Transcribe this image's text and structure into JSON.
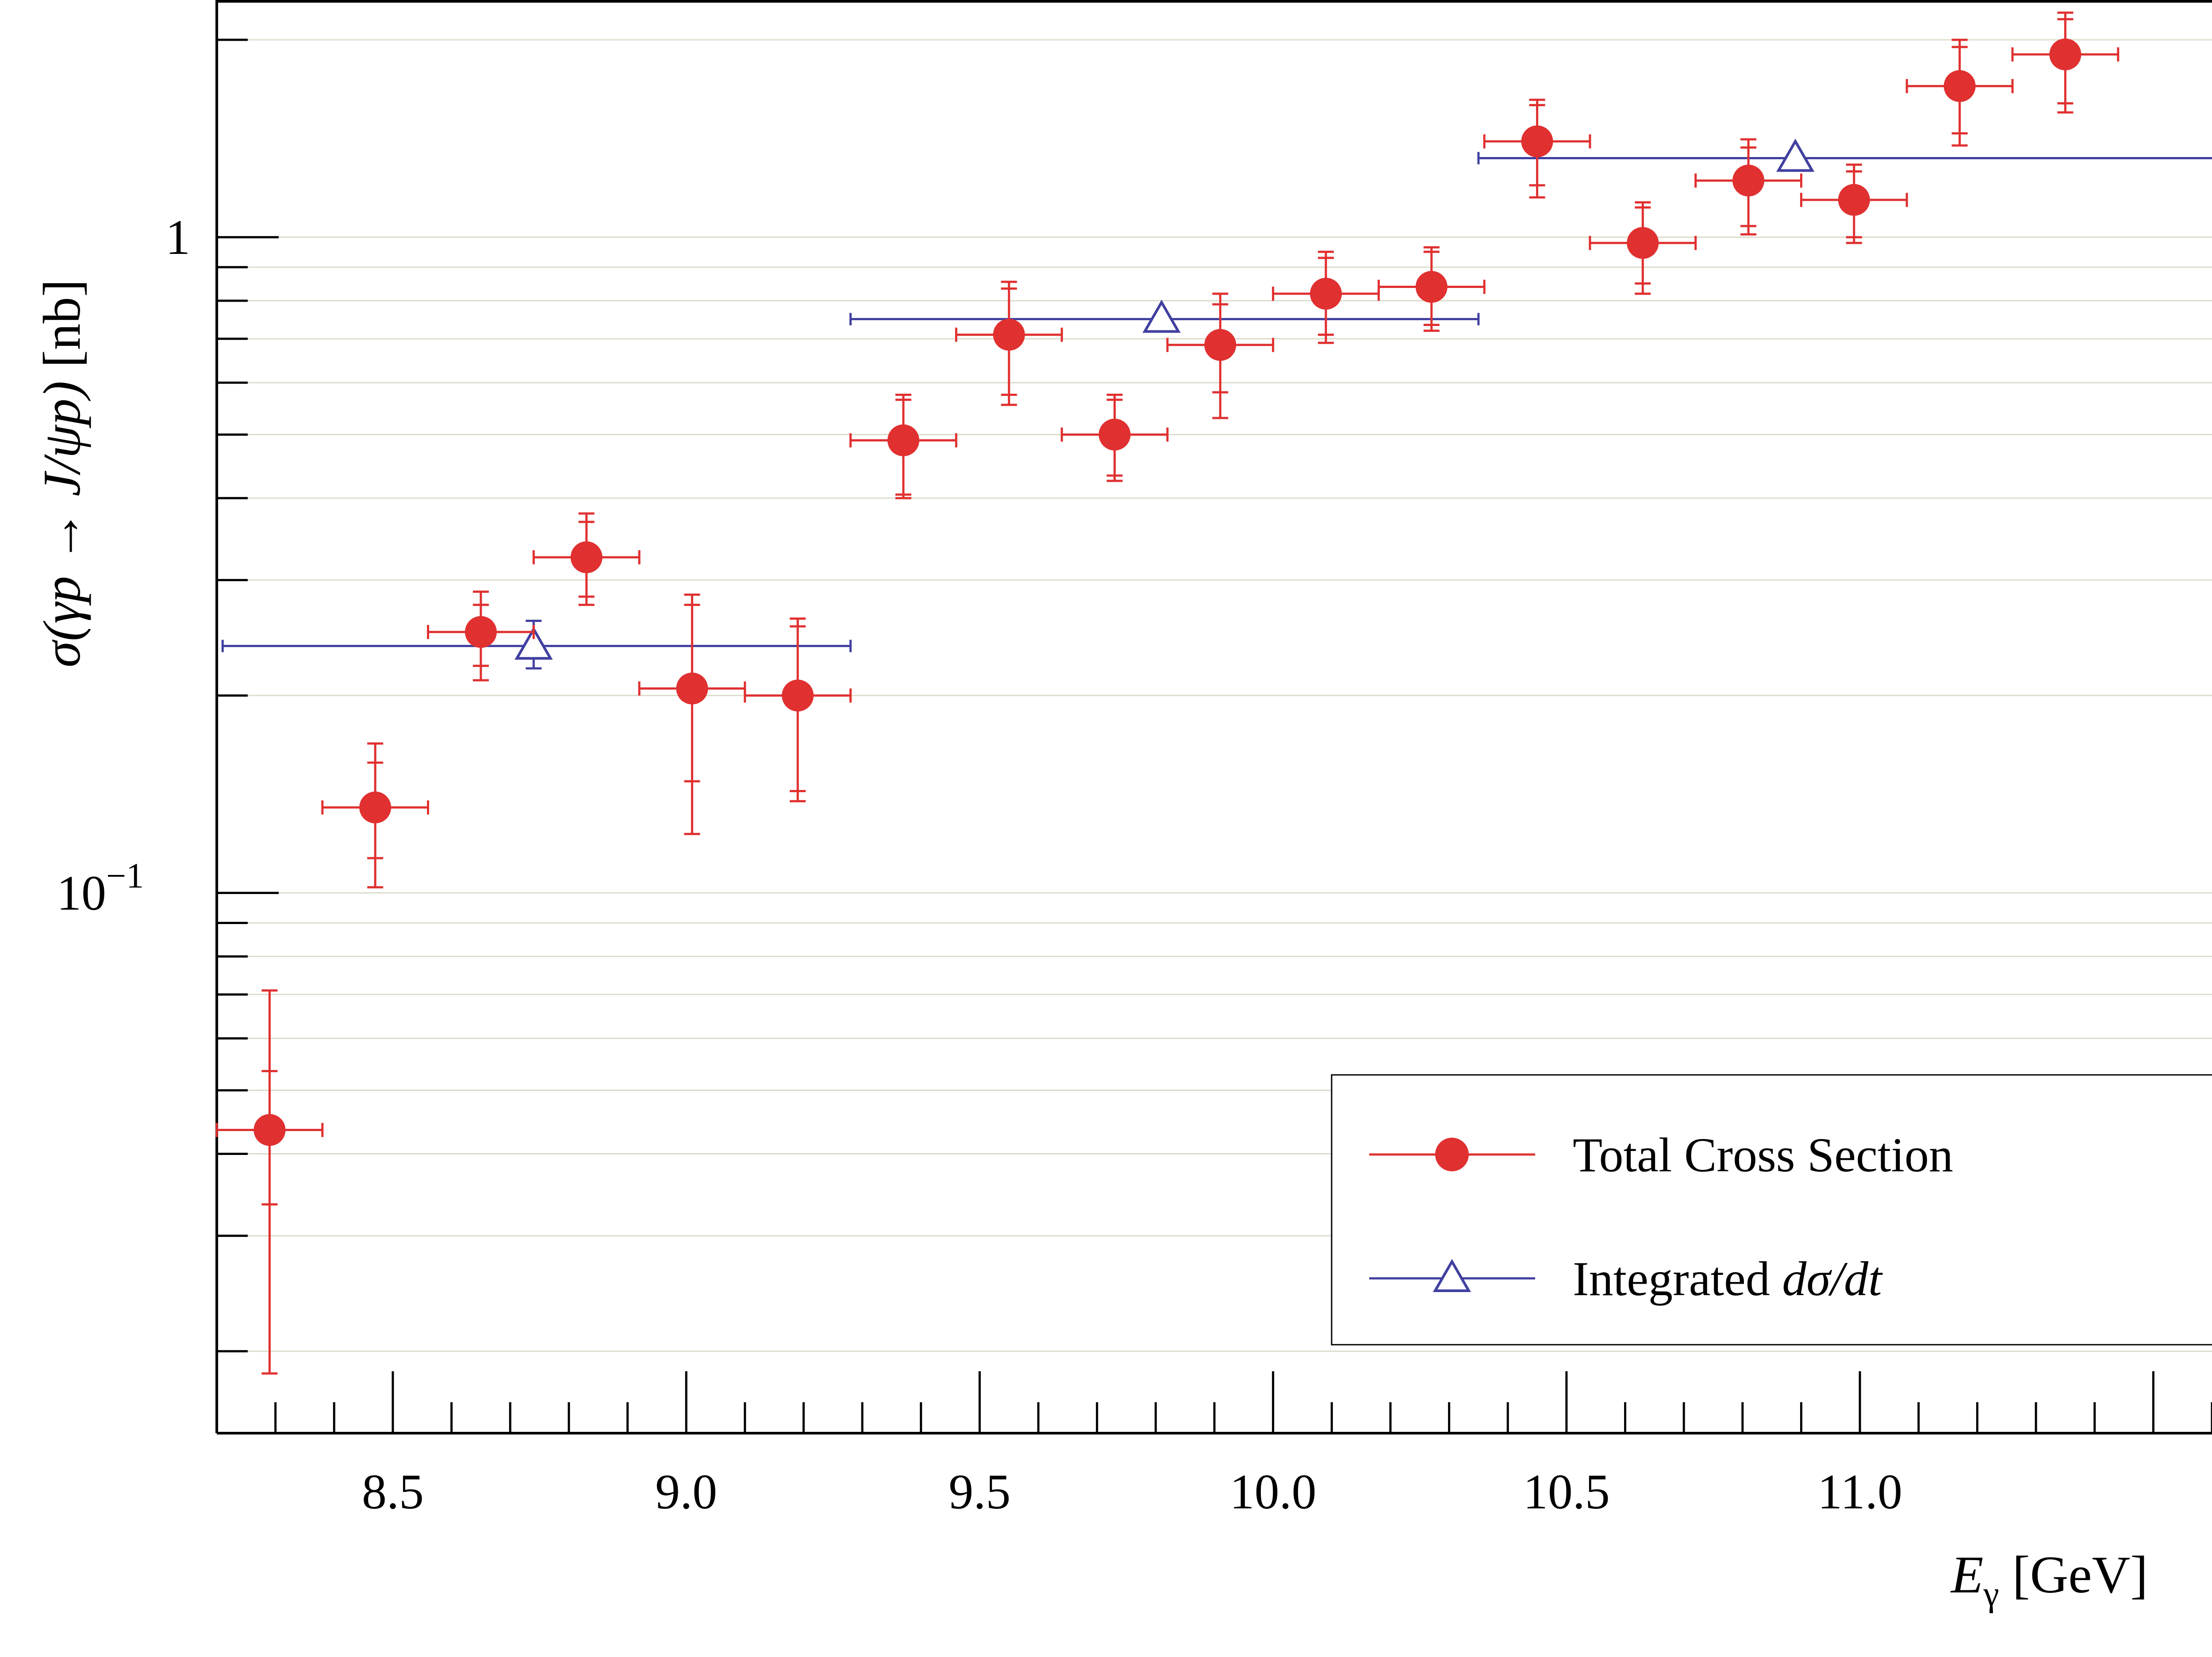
{
  "chart_data": {
    "type": "scatter",
    "title": "",
    "xlabel": "E_γ [GeV]",
    "xlabel_parts": {
      "symbol": "E",
      "subscript": "γ",
      "unit": " [GeV]"
    },
    "ylabel": "σ(γp → J/ψp) [nb]",
    "ylabel_parts": {
      "main": "σ(γp → J/ψp)",
      "unit": " [nb]"
    },
    "xlim": [
      8.2,
      11.6
    ],
    "ylim": [
      0.015,
      2.3
    ],
    "yscale": "log",
    "grid": "horizontal",
    "legend_position": "bottom-right",
    "x_ticks": [
      "8.5",
      "9.0",
      "9.5",
      "10.0",
      "10.5",
      "11.0"
    ],
    "y_tick_labels": [
      {
        "value": 1,
        "base": "1",
        "exp": ""
      },
      {
        "value": 0.1,
        "base": "10",
        "exp": "−1"
      }
    ],
    "colors": {
      "total": "#e03030",
      "integrated": "#4040a0"
    },
    "series": [
      {
        "name": "Total Cross Section",
        "marker": "circle",
        "points": [
          {
            "x": 8.29,
            "y": 0.0435,
            "xerr": 0.09,
            "ystat": [
              0.0335,
              0.0535
            ],
            "ytot": [
              0.0185,
              0.071
            ]
          },
          {
            "x": 8.47,
            "y": 0.135,
            "xerr": 0.09,
            "ystat": [
              0.113,
              0.158
            ],
            "ytot": [
              0.102,
              0.169
            ]
          },
          {
            "x": 8.65,
            "y": 0.25,
            "xerr": 0.09,
            "ystat": [
              0.222,
              0.275
            ],
            "ytot": [
              0.211,
              0.288
            ]
          },
          {
            "x": 8.83,
            "y": 0.325,
            "xerr": 0.09,
            "ystat": [
              0.283,
              0.368
            ],
            "ytot": [
              0.275,
              0.379
            ]
          },
          {
            "x": 9.01,
            "y": 0.205,
            "xerr": 0.09,
            "ystat": [
              0.148,
              0.275
            ],
            "ytot": [
              0.123,
              0.285
            ]
          },
          {
            "x": 9.19,
            "y": 0.2,
            "xerr": 0.09,
            "ystat": [
              0.143,
              0.255
            ],
            "ytot": [
              0.138,
              0.262
            ]
          },
          {
            "x": 9.37,
            "y": 0.49,
            "xerr": 0.09,
            "ystat": [
              0.405,
              0.565
            ],
            "ytot": [
              0.4,
              0.575
            ]
          },
          {
            "x": 9.55,
            "y": 0.71,
            "xerr": 0.09,
            "ystat": [
              0.575,
              0.835
            ],
            "ytot": [
              0.555,
              0.855
            ]
          },
          {
            "x": 9.73,
            "y": 0.5,
            "xerr": 0.09,
            "ystat": [
              0.433,
              0.565
            ],
            "ytot": [
              0.425,
              0.575
            ]
          },
          {
            "x": 9.91,
            "y": 0.685,
            "xerr": 0.09,
            "ystat": [
              0.58,
              0.79
            ],
            "ytot": [
              0.53,
              0.82
            ]
          },
          {
            "x": 10.09,
            "y": 0.82,
            "xerr": 0.09,
            "ystat": [
              0.71,
              0.93
            ],
            "ytot": [
              0.69,
              0.95
            ]
          },
          {
            "x": 10.27,
            "y": 0.84,
            "xerr": 0.09,
            "ystat": [
              0.735,
              0.95
            ],
            "ytot": [
              0.72,
              0.965
            ]
          },
          {
            "x": 10.45,
            "y": 1.4,
            "xerr": 0.09,
            "ystat": [
              1.2,
              1.59
            ],
            "ytot": [
              1.15,
              1.62
            ]
          },
          {
            "x": 10.63,
            "y": 0.98,
            "xerr": 0.09,
            "ystat": [
              0.85,
              1.11
            ],
            "ytot": [
              0.82,
              1.13
            ]
          },
          {
            "x": 10.81,
            "y": 1.22,
            "xerr": 0.09,
            "ystat": [
              1.04,
              1.37
            ],
            "ytot": [
              1.01,
              1.41
            ]
          },
          {
            "x": 10.99,
            "y": 1.14,
            "xerr": 0.09,
            "ystat": [
              1.0,
              1.26
            ],
            "ytot": [
              0.98,
              1.29
            ]
          },
          {
            "x": 11.17,
            "y": 1.7,
            "xerr": 0.09,
            "ystat": [
              1.44,
              1.95
            ],
            "ytot": [
              1.38,
              2.0
            ]
          },
          {
            "x": 11.35,
            "y": 1.9,
            "xerr": 0.09,
            "ystat": [
              1.6,
              2.15
            ],
            "ytot": [
              1.55,
              2.2
            ]
          }
        ]
      },
      {
        "name": "Integrated dσ/dt",
        "name_parts": {
          "plain": "Integrated ",
          "italic": "dσ/dt"
        },
        "marker": "triangle-open",
        "points": [
          {
            "x": 8.74,
            "y": 0.238,
            "xlow": 8.21,
            "xhigh": 9.28,
            "ylow": 0.22,
            "yhigh": 0.26
          },
          {
            "x": 9.81,
            "y": 0.75,
            "xlow": 9.28,
            "xhigh": 10.35,
            "ylow": 0.74,
            "yhigh": 0.76
          },
          {
            "x": 10.89,
            "y": 1.32,
            "xlow": 10.35,
            "xhigh": 11.6,
            "ylow": 1.31,
            "yhigh": 1.33
          }
        ]
      }
    ]
  }
}
